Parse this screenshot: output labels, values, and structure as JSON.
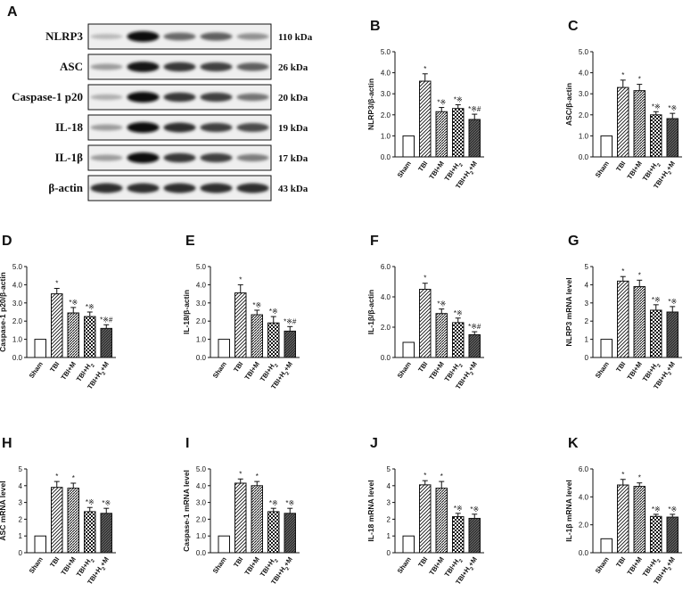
{
  "blot": {
    "label": "A",
    "proteins": [
      {
        "name": "NLRP3",
        "kda": "110 kDa",
        "intensity": [
          0.15,
          1.0,
          0.55,
          0.6,
          0.35
        ]
      },
      {
        "name": "ASC",
        "kda": "26 kDa",
        "intensity": [
          0.3,
          0.95,
          0.8,
          0.75,
          0.6
        ]
      },
      {
        "name": "Caspase-1 p20",
        "kda": "20 kDa",
        "intensity": [
          0.2,
          1.0,
          0.8,
          0.75,
          0.5
        ]
      },
      {
        "name": "IL-18",
        "kda": "19 kDa",
        "intensity": [
          0.3,
          1.0,
          0.85,
          0.75,
          0.7
        ]
      },
      {
        "name": "IL-1β",
        "kda": "17 kDa",
        "intensity": [
          0.3,
          1.0,
          0.8,
          0.75,
          0.45
        ]
      },
      {
        "name": "β-actin",
        "kda": "43 kDa",
        "intensity": [
          0.85,
          0.85,
          0.85,
          0.85,
          0.85
        ]
      }
    ]
  },
  "colors": {
    "axis": "#111111",
    "fill": "#ffffff"
  },
  "chart_data": [
    {
      "label": "B",
      "type": "bar",
      "ylabel": "NLRP3/β-actin",
      "ylim": [
        0,
        5
      ],
      "yticks": [
        "0.0",
        "1.0",
        "2.0",
        "3.0",
        "4.0",
        "5.0"
      ],
      "categories": [
        "Sham",
        "TBI",
        "TBI+M",
        "TBI+H₂",
        "TBI+H₂+M"
      ],
      "values": [
        1.0,
        3.6,
        2.15,
        2.3,
        1.78
      ],
      "errors": [
        0,
        0.35,
        0.2,
        0.18,
        0.25
      ],
      "sig": [
        "",
        "*",
        "*※",
        "*※",
        "*※#"
      ]
    },
    {
      "label": "C",
      "type": "bar",
      "ylabel": "ASC/β-actin",
      "ylim": [
        0,
        5
      ],
      "yticks": [
        "0.0",
        "1.0",
        "2.0",
        "3.0",
        "4.0",
        "5.0"
      ],
      "categories": [
        "Sham",
        "TBI",
        "TBI+M",
        "TBI+H₂",
        "TBI+H₂+M"
      ],
      "values": [
        1.0,
        3.3,
        3.15,
        2.0,
        1.82
      ],
      "errors": [
        0,
        0.35,
        0.3,
        0.15,
        0.25
      ],
      "sig": [
        "",
        "*",
        "*",
        "*※",
        "*※"
      ]
    },
    {
      "label": "D",
      "type": "bar",
      "ylabel": "Caspase-1 p20/β-actin",
      "ylim": [
        0,
        5
      ],
      "yticks": [
        "0.0",
        "1.0",
        "2.0",
        "3.0",
        "4.0",
        "5.0"
      ],
      "categories": [
        "Sham",
        "TBI",
        "TBI+M",
        "TBI+H₂",
        "TBI+H₂+M"
      ],
      "values": [
        1.0,
        3.5,
        2.45,
        2.25,
        1.6
      ],
      "errors": [
        0,
        0.3,
        0.3,
        0.25,
        0.2
      ],
      "sig": [
        "",
        "*",
        "*※",
        "*※",
        "*※#"
      ]
    },
    {
      "label": "E",
      "type": "bar",
      "ylabel": "IL-18/β-actin",
      "ylim": [
        0,
        5
      ],
      "yticks": [
        "0.0",
        "1.0",
        "2.0",
        "3.0",
        "4.0",
        "5.0"
      ],
      "categories": [
        "Sham",
        "TBI",
        "TBI+M",
        "TBI+H₂",
        "TBI+H₂+M"
      ],
      "values": [
        1.0,
        3.55,
        2.35,
        1.9,
        1.45
      ],
      "errors": [
        0,
        0.45,
        0.25,
        0.35,
        0.25
      ],
      "sig": [
        "",
        "*",
        "*※",
        "*※",
        "*※#"
      ]
    },
    {
      "label": "F",
      "type": "bar",
      "ylabel": "IL-1β/β-actin",
      "ylim": [
        0,
        6
      ],
      "yticks": [
        "0.0",
        "2.0",
        "4.0",
        "6.0"
      ],
      "categories": [
        "Sham",
        "TBI",
        "TBI+M",
        "TBI+H₂",
        "TBI+H₂+M"
      ],
      "values": [
        1.0,
        4.5,
        2.9,
        2.3,
        1.5
      ],
      "errors": [
        0,
        0.4,
        0.3,
        0.3,
        0.2
      ],
      "sig": [
        "",
        "*",
        "*※",
        "*※",
        "*※#"
      ]
    },
    {
      "label": "G",
      "type": "bar",
      "ylabel": "NLRP3 mRNA level",
      "ylim": [
        0,
        5
      ],
      "yticks": [
        "0",
        "1",
        "2",
        "3",
        "4",
        "5"
      ],
      "categories": [
        "Sham",
        "TBI",
        "TBI+M",
        "TBI+H₂",
        "TBI+H₂+M"
      ],
      "values": [
        1.0,
        4.2,
        3.9,
        2.6,
        2.5
      ],
      "errors": [
        0,
        0.25,
        0.35,
        0.3,
        0.3
      ],
      "sig": [
        "",
        "*",
        "*",
        "*※",
        "*※"
      ]
    },
    {
      "label": "H",
      "type": "bar",
      "ylabel": "ASC mRNA level",
      "ylim": [
        0,
        5
      ],
      "yticks": [
        "0",
        "1",
        "2",
        "3",
        "4",
        "5"
      ],
      "categories": [
        "Sham",
        "TBI",
        "TBI+M",
        "TBI+H₂",
        "TBI+H₂+M"
      ],
      "values": [
        1.0,
        3.9,
        3.85,
        2.45,
        2.35
      ],
      "errors": [
        0,
        0.35,
        0.3,
        0.25,
        0.3
      ],
      "sig": [
        "",
        "*",
        "*",
        "*※",
        "*※"
      ]
    },
    {
      "label": "I",
      "type": "bar",
      "ylabel": "Caspase-1 mRNA level",
      "ylim": [
        0,
        5
      ],
      "yticks": [
        "0.0",
        "1.0",
        "2.0",
        "3.0",
        "4.0",
        "5.0"
      ],
      "categories": [
        "Sham",
        "TBI",
        "TBI+M",
        "TBI+H₂",
        "TBI+H₂+M"
      ],
      "values": [
        1.0,
        4.15,
        4.0,
        2.45,
        2.35
      ],
      "errors": [
        0,
        0.25,
        0.25,
        0.2,
        0.3
      ],
      "sig": [
        "",
        "*",
        "*",
        "*※",
        "*※"
      ]
    },
    {
      "label": "J",
      "type": "bar",
      "ylabel": "IL-18 mRNA level",
      "ylim": [
        0,
        5
      ],
      "yticks": [
        "0",
        "1",
        "2",
        "3",
        "4",
        "5"
      ],
      "categories": [
        "Sham",
        "TBI",
        "TBI+M",
        "TBI+H₂",
        "TBI+H₂+M"
      ],
      "values": [
        1.0,
        4.05,
        3.85,
        2.15,
        2.05
      ],
      "errors": [
        0,
        0.25,
        0.4,
        0.2,
        0.25
      ],
      "sig": [
        "",
        "*",
        "*",
        "*※",
        "*※"
      ]
    },
    {
      "label": "K",
      "type": "bar",
      "ylabel": "IL-1β mRNA level",
      "ylim": [
        0,
        6
      ],
      "yticks": [
        "0.0",
        "2.0",
        "4.0",
        "6.0"
      ],
      "categories": [
        "Sham",
        "TBI",
        "TBI+M",
        "TBI+H₂",
        "TBI+H₂+M"
      ],
      "values": [
        1.0,
        4.85,
        4.75,
        2.6,
        2.55
      ],
      "errors": [
        0,
        0.4,
        0.25,
        0.15,
        0.2
      ],
      "sig": [
        "",
        "*",
        "*",
        "*※",
        "*※"
      ]
    }
  ]
}
